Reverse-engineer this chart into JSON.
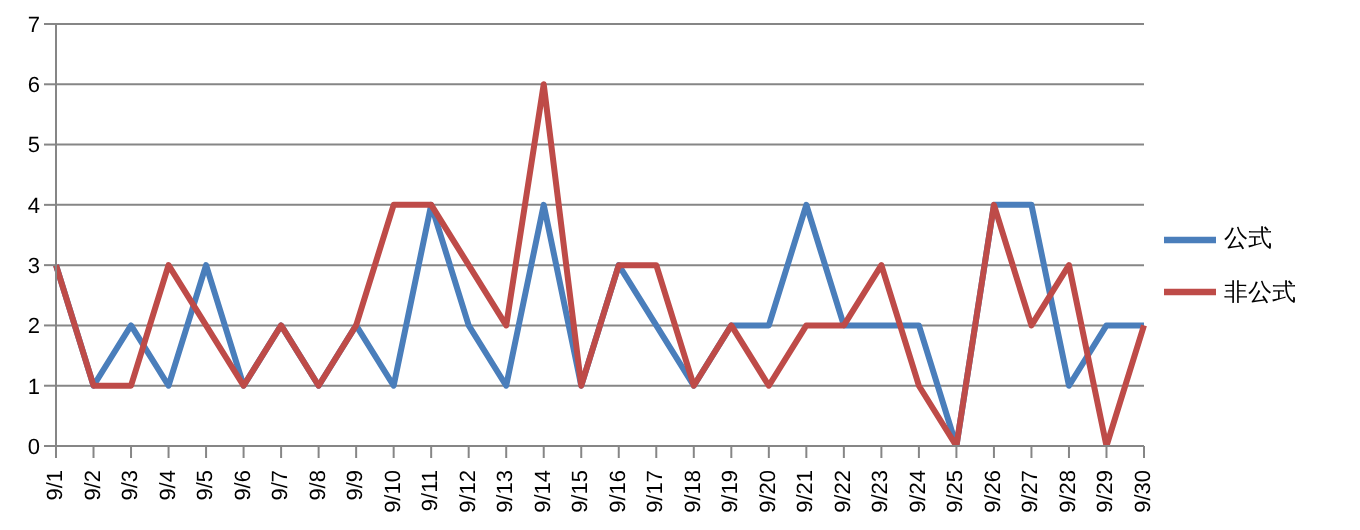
{
  "chart_data": {
    "type": "line",
    "categories": [
      "9/1",
      "9/2",
      "9/3",
      "9/4",
      "9/5",
      "9/6",
      "9/7",
      "9/8",
      "9/9",
      "9/10",
      "9/11",
      "9/12",
      "9/13",
      "9/14",
      "9/15",
      "9/16",
      "9/17",
      "9/18",
      "9/19",
      "9/20",
      "9/21",
      "9/22",
      "9/23",
      "9/24",
      "9/25",
      "9/26",
      "9/27",
      "9/28",
      "9/29",
      "9/30"
    ],
    "series": [
      {
        "name": "公式",
        "color": "#4a7ebb",
        "values": [
          3,
          1,
          2,
          1,
          3,
          1,
          2,
          1,
          2,
          1,
          4,
          2,
          1,
          4,
          1,
          3,
          2,
          1,
          2,
          2,
          4,
          2,
          2,
          2,
          0,
          4,
          4,
          1,
          2,
          2
        ]
      },
      {
        "name": "非公式",
        "color": "#be4b48",
        "values": [
          3,
          1,
          1,
          3,
          2,
          1,
          2,
          1,
          2,
          4,
          4,
          3,
          2,
          6,
          1,
          3,
          3,
          1,
          2,
          1,
          2,
          2,
          3,
          1,
          0,
          4,
          2,
          3,
          0,
          2
        ]
      }
    ],
    "ylim": [
      0,
      7
    ],
    "yticks": [
      0,
      1,
      2,
      3,
      4,
      5,
      6,
      7
    ],
    "grid": "y",
    "legend": "right",
    "marker": "none",
    "line_style": "solid"
  }
}
